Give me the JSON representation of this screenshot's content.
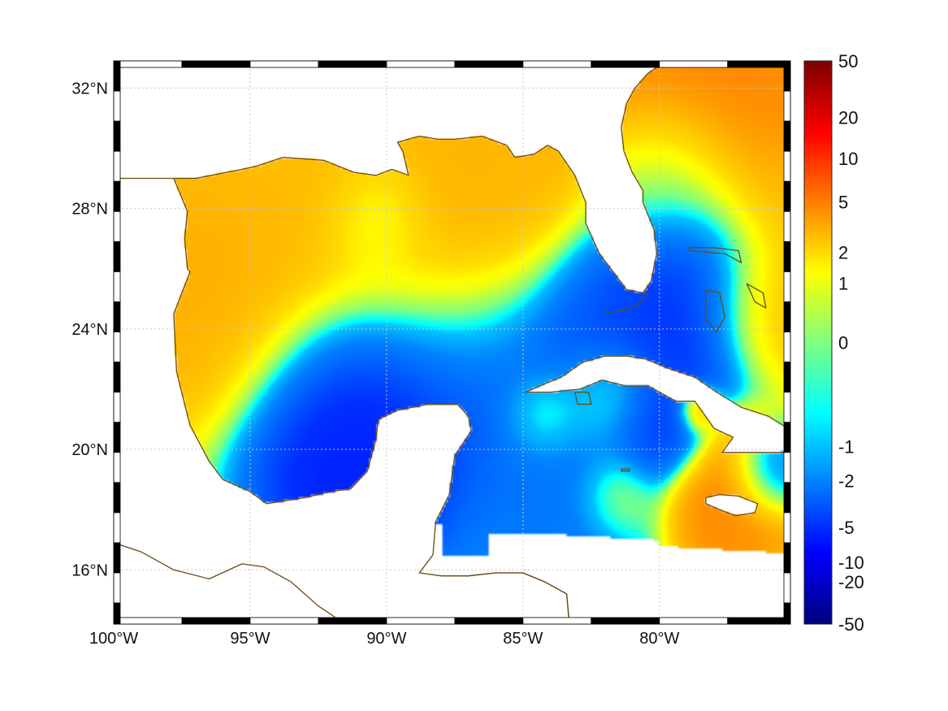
{
  "map": {
    "lon_range": [
      -100,
      -75.2
    ],
    "lat_range": [
      14.2,
      32.9
    ],
    "lon_ticks": [
      {
        "value": -100,
        "label": "100°W"
      },
      {
        "value": -95,
        "label": "95°W"
      },
      {
        "value": -90,
        "label": "90°W"
      },
      {
        "value": -85,
        "label": "85°W"
      },
      {
        "value": -80,
        "label": "80°W"
      }
    ],
    "lat_ticks": [
      {
        "value": 32,
        "label": "32°N"
      },
      {
        "value": 28,
        "label": "28°N"
      },
      {
        "value": 24,
        "label": "24°N"
      },
      {
        "value": 20,
        "label": "20°N"
      },
      {
        "value": 16,
        "label": "16°N"
      }
    ],
    "grid": true,
    "coastline_color": "#6b4a14",
    "field": {
      "colormap": "jet",
      "color_range": [
        -50,
        50
      ],
      "background": 0.3,
      "blobs": [
        {
          "lon": -93.0,
          "lat": 26.5,
          "value": 3.5,
          "radius": 3.2
        },
        {
          "lon": -96.5,
          "lat": 25.2,
          "value": 3.5,
          "radius": 2.0
        },
        {
          "lon": -93.5,
          "lat": 28.6,
          "value": 2.8,
          "radius": 1.6
        },
        {
          "lon": -87.6,
          "lat": 26.4,
          "value": 3.8,
          "radius": 2.3
        },
        {
          "lon": -86.5,
          "lat": 28.8,
          "value": 3.2,
          "radius": 1.6
        },
        {
          "lon": -90.4,
          "lat": 27.5,
          "value": -0.6,
          "radius": 1.2
        },
        {
          "lon": -91.0,
          "lat": 21.5,
          "value": -8.0,
          "radius": 2.2
        },
        {
          "lon": -87.0,
          "lat": 22.8,
          "value": -3.5,
          "radius": 2.3
        },
        {
          "lon": -82.0,
          "lat": 23.3,
          "value": -4.5,
          "radius": 2.0
        },
        {
          "lon": -78.5,
          "lat": 25.5,
          "value": -6.0,
          "radius": 1.8
        },
        {
          "lon": -79.8,
          "lat": 29.0,
          "value": -1.2,
          "radius": 1.5
        },
        {
          "lon": -78.5,
          "lat": 31.8,
          "value": 5.0,
          "radius": 2.8
        },
        {
          "lon": -75.5,
          "lat": 27.5,
          "value": 3.2,
          "radius": 1.7
        },
        {
          "lon": -76.2,
          "lat": 24.8,
          "value": 4.2,
          "radius": 1.3
        },
        {
          "lon": -84.2,
          "lat": 21.2,
          "value": 1.8,
          "radius": 0.9
        },
        {
          "lon": -82.0,
          "lat": 21.8,
          "value": 2.0,
          "radius": 1.0
        },
        {
          "lon": -78.6,
          "lat": 21.3,
          "value": 5.0,
          "radius": 0.45
        },
        {
          "lon": -77.3,
          "lat": 18.7,
          "value": 5.0,
          "radius": 1.3
        },
        {
          "lon": -80.0,
          "lat": 20.8,
          "value": -5.0,
          "radius": 1.0
        },
        {
          "lon": -76.0,
          "lat": 19.3,
          "value": -4.0,
          "radius": 0.8
        },
        {
          "lon": -84.0,
          "lat": 18.8,
          "value": -2.5,
          "radius": 1.8
        },
        {
          "lon": -81.6,
          "lat": 18.6,
          "value": 1.0,
          "radius": 0.8
        }
      ]
    }
  },
  "colorbar": {
    "ticks": [
      {
        "value": 50,
        "label": "50"
      },
      {
        "value": 20,
        "label": "20"
      },
      {
        "value": 10,
        "label": "10"
      },
      {
        "value": 5,
        "label": "5"
      },
      {
        "value": 2,
        "label": "2"
      },
      {
        "value": 1,
        "label": "1"
      },
      {
        "value": 0,
        "label": "0"
      },
      {
        "value": -1,
        "label": "-1"
      },
      {
        "value": -2,
        "label": "-2"
      },
      {
        "value": -5,
        "label": "-5"
      },
      {
        "value": -10,
        "label": "-10"
      },
      {
        "value": -20,
        "label": "-20"
      },
      {
        "value": -50,
        "label": "-50"
      }
    ]
  }
}
